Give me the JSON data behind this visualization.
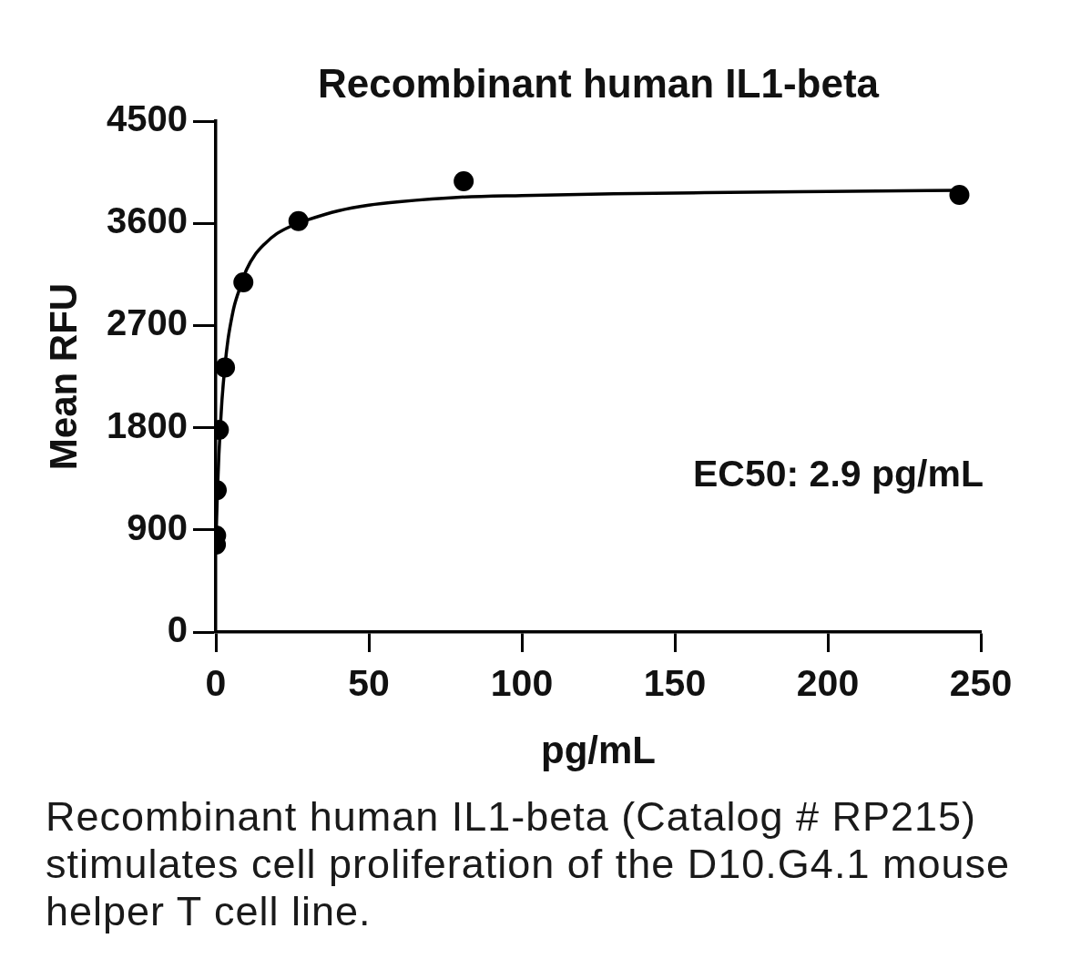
{
  "chart_data": {
    "type": "scatter",
    "title": "Recombinant human IL1-beta",
    "xlabel": "pg/mL",
    "ylabel": "Mean RFU",
    "series": [
      {
        "type": "line",
        "color": "#000000",
        "marker": "none",
        "x": [
          0,
          0.5,
          1,
          1.5,
          2,
          3,
          4,
          5,
          6,
          8,
          10,
          13,
          16,
          20,
          25,
          30,
          40,
          50,
          60,
          80,
          100,
          130,
          160,
          200,
          243
        ],
        "values": [
          760,
          1220,
          1560,
          1820,
          2040,
          2350,
          2580,
          2740,
          2870,
          3040,
          3190,
          3330,
          3420,
          3510,
          3580,
          3630,
          3710,
          3760,
          3790,
          3830,
          3845,
          3860,
          3870,
          3880,
          3890
        ]
      },
      {
        "color": "#000000",
        "marker": "circle",
        "x": [
          0.03,
          0.1,
          0.3,
          1,
          3,
          9,
          27,
          81,
          243
        ],
        "values": [
          770,
          850,
          1250,
          1780,
          2330,
          3080,
          3620,
          3970,
          3850
        ]
      }
    ],
    "xlim": [
      0,
      250
    ],
    "xticks": [
      0,
      50,
      100,
      150,
      200,
      250
    ],
    "ylim": [
      0,
      4500
    ],
    "yticks": [
      0,
      900,
      1800,
      2700,
      3600,
      4500
    ],
    "grid": false,
    "legend": false,
    "annotations": [
      "EC50: 2.9 pg/mL",
      "Recombinant human IL1-beta (Catalog # RP215) stimulates cell proliferation of the D10.G4.1 mouse helper T cell line."
    ]
  }
}
